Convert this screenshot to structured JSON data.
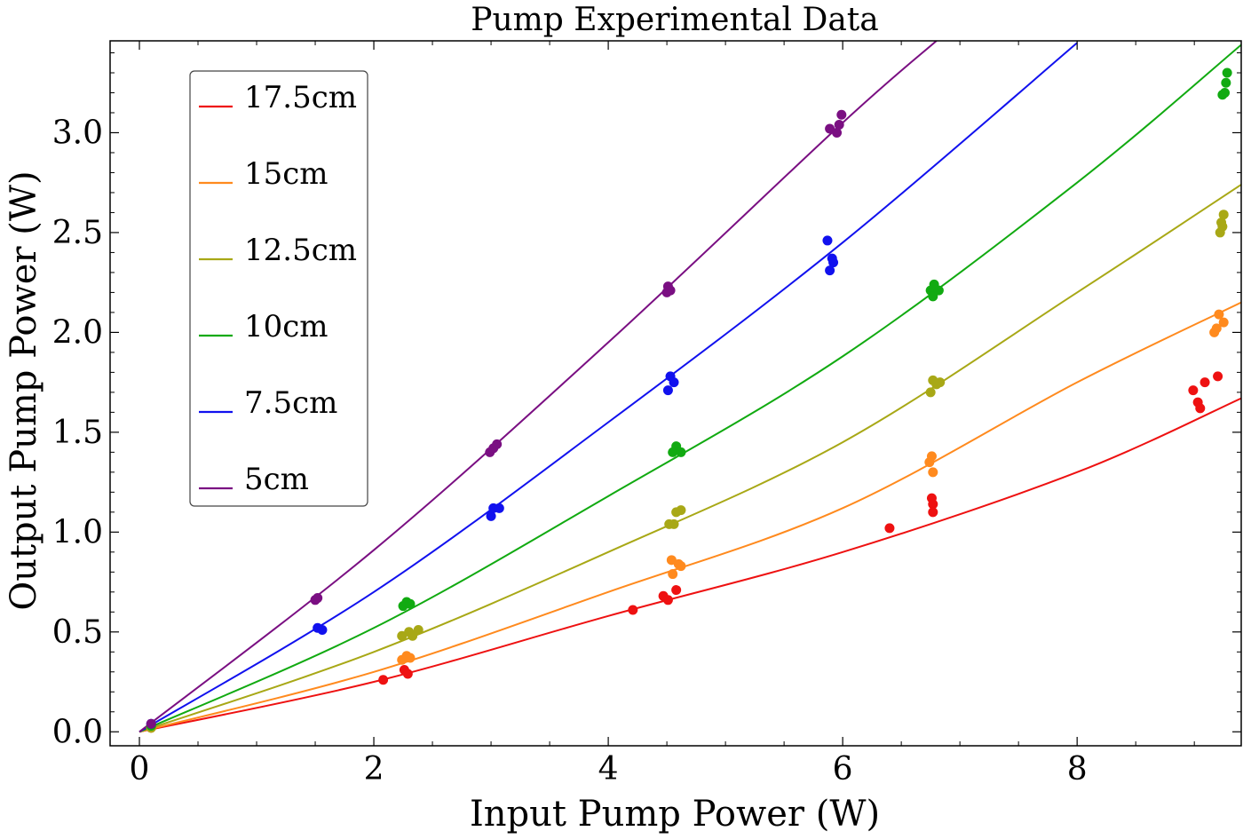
{
  "chart_data": {
    "type": "scatter",
    "title": "Pump Experimental Data",
    "xlabel": "Input Pump Power (W)",
    "ylabel": "Output Pump Power (W)",
    "xlim": [
      -0.25,
      9.4
    ],
    "ylim": [
      -0.07,
      3.46
    ],
    "xticks": [
      0,
      2,
      4,
      6,
      8
    ],
    "xtick_labels": [
      "0",
      "2",
      "4",
      "6",
      "8"
    ],
    "yticks": [
      0,
      0.5,
      1,
      1.5,
      2,
      2.5,
      3
    ],
    "ytick_labels": [
      "0.0",
      "0.5",
      "1.0",
      "1.5",
      "2.0",
      "2.5",
      "3.0"
    ],
    "legend_position": "top-left",
    "series": [
      {
        "name": "17.5cm",
        "color": "#ee1111",
        "fit": [
          [
            0,
            0
          ],
          [
            2,
            0.25
          ],
          [
            4,
            0.58
          ],
          [
            6,
            0.9
          ],
          [
            8,
            1.3
          ],
          [
            9.4,
            1.67
          ]
        ],
        "points": [
          [
            0.1,
            0.02
          ],
          [
            2.08,
            0.26
          ],
          [
            2.26,
            0.31
          ],
          [
            2.29,
            0.29
          ],
          [
            4.21,
            0.61
          ],
          [
            4.47,
            0.68
          ],
          [
            4.51,
            0.66
          ],
          [
            4.58,
            0.71
          ],
          [
            6.4,
            1.02
          ],
          [
            6.76,
            1.17
          ],
          [
            6.77,
            1.14
          ],
          [
            6.77,
            1.1
          ],
          [
            8.99,
            1.71
          ],
          [
            9.03,
            1.65
          ],
          [
            9.05,
            1.62
          ],
          [
            9.09,
            1.75
          ],
          [
            9.2,
            1.78
          ]
        ]
      },
      {
        "name": "15cm",
        "color": "#ff8a1e",
        "fit": [
          [
            0,
            0
          ],
          [
            2,
            0.3
          ],
          [
            4,
            0.7
          ],
          [
            6,
            1.12
          ],
          [
            8,
            1.75
          ],
          [
            9.4,
            2.15
          ]
        ],
        "points": [
          [
            0.1,
            0.02
          ],
          [
            2.24,
            0.36
          ],
          [
            2.28,
            0.38
          ],
          [
            2.31,
            0.37
          ],
          [
            4.54,
            0.86
          ],
          [
            4.55,
            0.79
          ],
          [
            4.6,
            0.84
          ],
          [
            4.62,
            0.83
          ],
          [
            6.74,
            1.35
          ],
          [
            6.76,
            1.38
          ],
          [
            6.77,
            1.3
          ],
          [
            9.17,
            2.0
          ],
          [
            9.19,
            2.02
          ],
          [
            9.21,
            2.09
          ],
          [
            9.25,
            2.05
          ]
        ]
      },
      {
        "name": "12.5cm",
        "color": "#a8a816",
        "fit": [
          [
            0,
            0
          ],
          [
            2,
            0.4
          ],
          [
            4,
            0.9
          ],
          [
            6,
            1.45
          ],
          [
            8,
            2.2
          ],
          [
            9.4,
            2.74
          ]
        ],
        "points": [
          [
            0.1,
            0.02
          ],
          [
            2.24,
            0.48
          ],
          [
            2.3,
            0.5
          ],
          [
            2.33,
            0.48
          ],
          [
            2.38,
            0.51
          ],
          [
            4.52,
            1.04
          ],
          [
            4.56,
            1.04
          ],
          [
            4.58,
            1.1
          ],
          [
            4.62,
            1.11
          ],
          [
            6.75,
            1.7
          ],
          [
            6.77,
            1.76
          ],
          [
            6.8,
            1.74
          ],
          [
            6.83,
            1.75
          ],
          [
            9.22,
            2.5
          ],
          [
            9.23,
            2.55
          ],
          [
            9.24,
            2.53
          ],
          [
            9.25,
            2.59
          ]
        ]
      },
      {
        "name": "10cm",
        "color": "#11aa11",
        "fit": [
          [
            0,
            0
          ],
          [
            2,
            0.52
          ],
          [
            4,
            1.18
          ],
          [
            6,
            1.88
          ],
          [
            8,
            2.75
          ],
          [
            9.4,
            3.44
          ]
        ],
        "points": [
          [
            0.1,
            0.03
          ],
          [
            2.25,
            0.63
          ],
          [
            2.28,
            0.65
          ],
          [
            2.31,
            0.64
          ],
          [
            4.55,
            1.4
          ],
          [
            4.58,
            1.43
          ],
          [
            4.62,
            1.4
          ],
          [
            6.75,
            2.21
          ],
          [
            6.77,
            2.18
          ],
          [
            6.78,
            2.24
          ],
          [
            6.82,
            2.21
          ],
          [
            9.24,
            3.19
          ],
          [
            9.26,
            3.2
          ],
          [
            9.27,
            3.25
          ],
          [
            9.28,
            3.3
          ]
        ]
      },
      {
        "name": "7.5cm",
        "color": "#1111ee",
        "fit": [
          [
            0,
            0
          ],
          [
            2,
            0.7
          ],
          [
            4,
            1.55
          ],
          [
            6,
            2.45
          ],
          [
            8,
            3.45
          ]
        ],
        "points": [
          [
            0.1,
            0.04
          ],
          [
            1.52,
            0.52
          ],
          [
            1.56,
            0.51
          ],
          [
            3.0,
            1.08
          ],
          [
            3.02,
            1.12
          ],
          [
            3.07,
            1.12
          ],
          [
            4.51,
            1.71
          ],
          [
            4.53,
            1.78
          ],
          [
            4.56,
            1.75
          ],
          [
            5.87,
            2.46
          ],
          [
            5.89,
            2.31
          ],
          [
            5.91,
            2.37
          ],
          [
            5.92,
            2.35
          ]
        ]
      },
      {
        "name": "5cm",
        "color": "#7a0f82",
        "fit": [
          [
            0,
            0
          ],
          [
            2,
            0.91
          ],
          [
            4,
            1.95
          ],
          [
            6,
            3.05
          ],
          [
            6.8,
            3.46
          ]
        ],
        "points": [
          [
            0.1,
            0.04
          ],
          [
            1.5,
            0.66
          ],
          [
            1.52,
            0.67
          ],
          [
            2.99,
            1.4
          ],
          [
            3.02,
            1.42
          ],
          [
            3.05,
            1.44
          ],
          [
            4.5,
            2.2
          ],
          [
            4.51,
            2.23
          ],
          [
            4.53,
            2.21
          ],
          [
            5.89,
            3.02
          ],
          [
            5.95,
            3.0
          ],
          [
            5.97,
            3.04
          ],
          [
            5.99,
            3.09
          ]
        ]
      }
    ]
  }
}
